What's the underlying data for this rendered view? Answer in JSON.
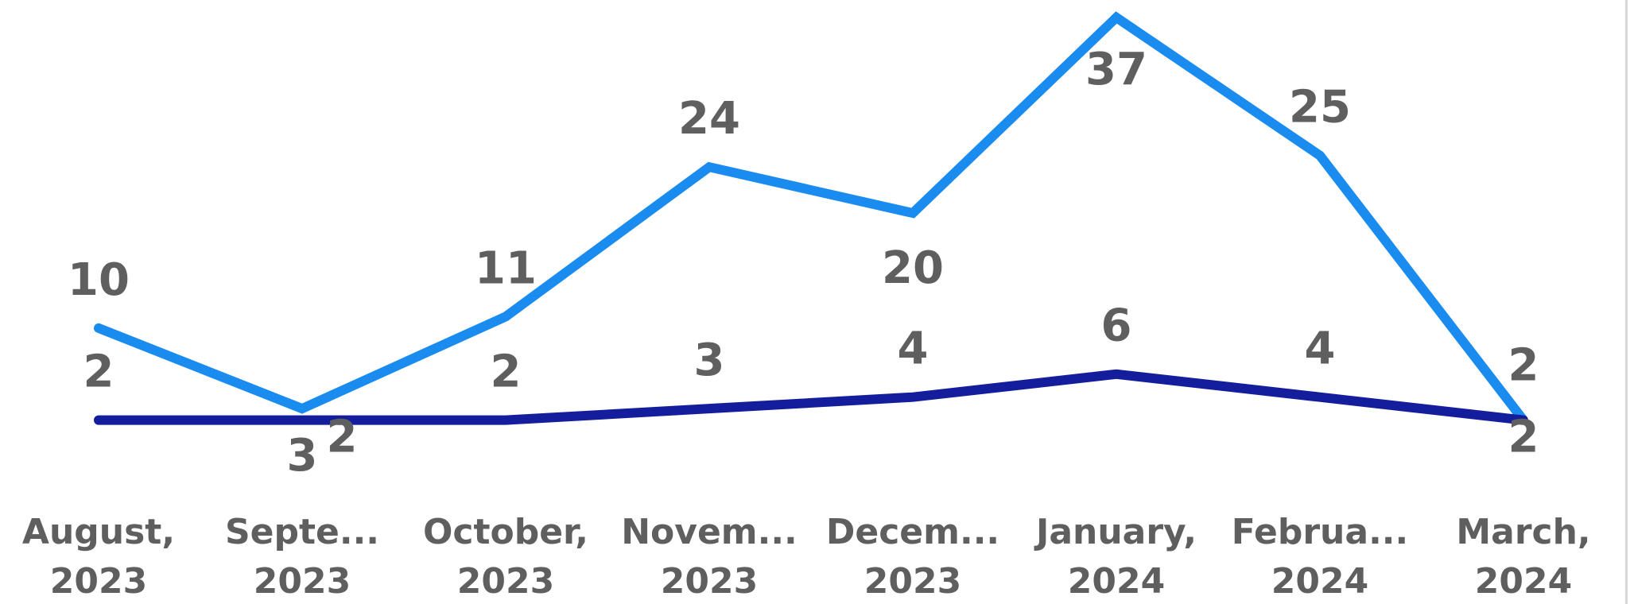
{
  "chart_data": {
    "type": "line",
    "x_tick_labels": [
      [
        "August,",
        "2023"
      ],
      [
        "Septe...",
        "2023"
      ],
      [
        "October,",
        "2023"
      ],
      [
        "Novem...",
        "2023"
      ],
      [
        "Decem...",
        "2023"
      ],
      [
        "January,",
        "2024"
      ],
      [
        "Februa...",
        "2024"
      ],
      [
        "March,",
        "2024"
      ]
    ],
    "series": [
      {
        "values": [
          10,
          3,
          11,
          24,
          20,
          37,
          25,
          2
        ],
        "color": "#1a8cf0"
      },
      {
        "values": [
          2,
          2,
          2,
          3,
          4,
          6,
          4,
          2
        ],
        "color": "#141e9c"
      }
    ],
    "ylim": [
      0,
      37
    ],
    "grid": false,
    "legend": "none"
  }
}
